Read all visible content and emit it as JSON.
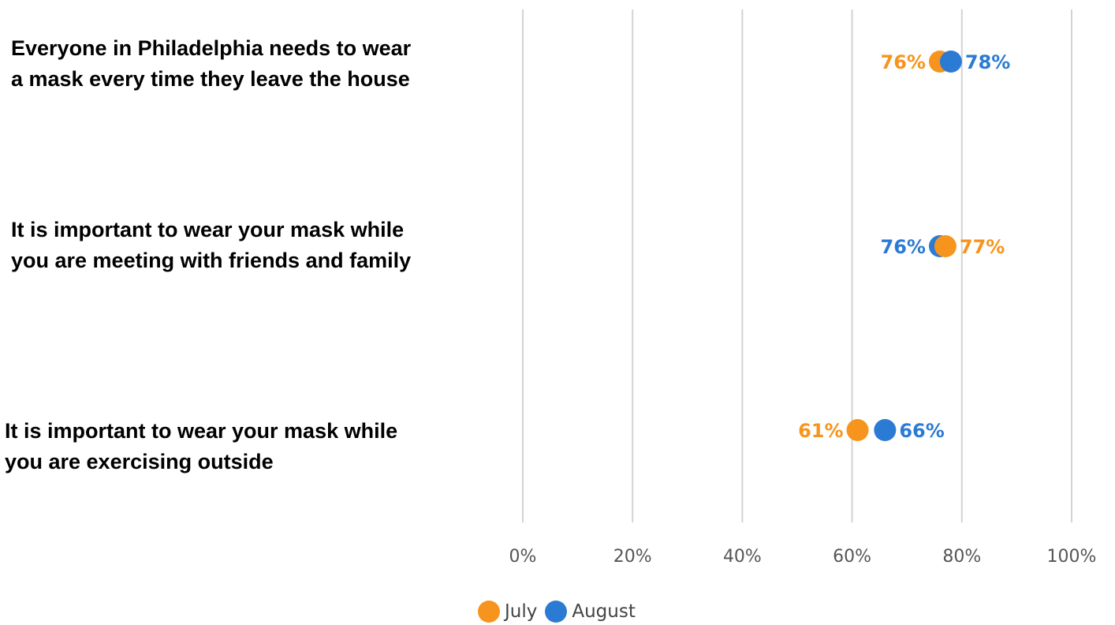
{
  "chart_data": {
    "type": "scatter",
    "categories": [
      [
        "Everyone in Philadelphia needs to wear",
        "a mask every time they leave the house"
      ],
      [
        "It is important to wear your mask while",
        "you are meeting with friends and family"
      ],
      [
        "It is important to wear your mask while",
        "you are exercising outside"
      ]
    ],
    "series": [
      {
        "name": "July",
        "color": "#F7941D",
        "values": [
          76,
          77,
          61
        ],
        "labels": [
          "76%",
          "77%",
          "61%"
        ]
      },
      {
        "name": "August",
        "color": "#2B7BD4",
        "values": [
          78,
          76,
          66
        ],
        "labels": [
          "78%",
          "76%",
          "66%"
        ]
      }
    ],
    "xlim": [
      0,
      100
    ],
    "xticks": [
      "0%",
      "20%",
      "40%",
      "60%",
      "80%",
      "100%"
    ],
    "grid": "vertical",
    "legend": "bottom-center"
  }
}
